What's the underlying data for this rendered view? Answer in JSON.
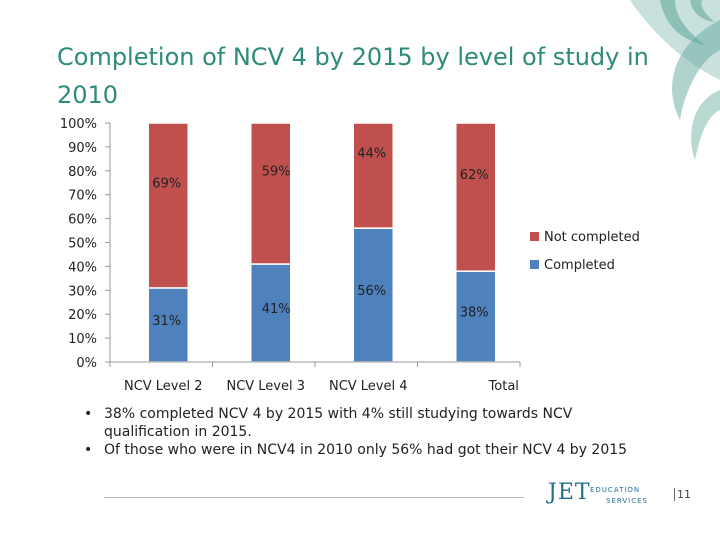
{
  "title": "Completion of NCV 4 by 2015 by level of study in 2010",
  "chart_data": {
    "type": "bar",
    "stacked": true,
    "categories": [
      "NCV Level 2",
      "NCV Level 3",
      "NCV Level 4",
      "Total"
    ],
    "series": [
      {
        "name": "Completed",
        "values": [
          31,
          41,
          56,
          38
        ],
        "color": "#4f81bd"
      },
      {
        "name": "Not completed",
        "values": [
          69,
          59,
          44,
          62
        ],
        "color": "#c0504d"
      }
    ],
    "ylim": [
      0,
      100
    ],
    "yticks": [
      "0%",
      "10%",
      "20%",
      "30%",
      "40%",
      "50%",
      "60%",
      "70%",
      "80%",
      "90%",
      "100%"
    ],
    "data_labels": {
      "Completed": [
        "31%",
        "41%",
        "56%",
        "38%"
      ],
      "Not completed": [
        "69%",
        "59%",
        "44%",
        "62%"
      ]
    },
    "legend_position": "right",
    "grid": false
  },
  "bullets": [
    "38% completed NCV 4 by 2015 with 4% still studying towards  NCV qualification in 2015.",
    " Of those who were in NCV4 in 2010 only 56% had got  their NCV 4 by 2015"
  ],
  "bullet_marker": "•",
  "logo": {
    "main": "JET",
    "line1": "EDUCATION",
    "line2": "SERVICES"
  },
  "page_number": "11"
}
